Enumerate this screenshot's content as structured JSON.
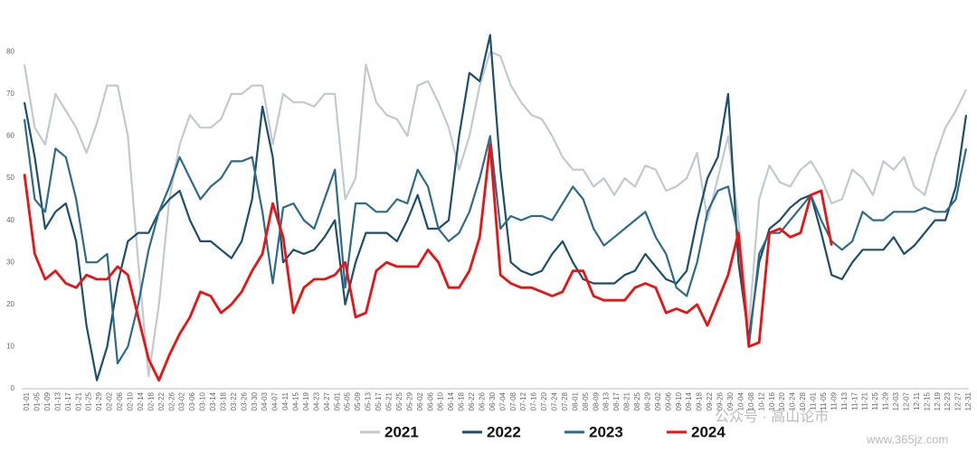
{
  "chart_data": {
    "type": "line",
    "categories": [
      "01-01",
      "01-05",
      "01-09",
      "01-13",
      "01-17",
      "01-21",
      "01-25",
      "01-29",
      "02-02",
      "02-06",
      "02-10",
      "02-14",
      "02-18",
      "02-22",
      "02-26",
      "03-02",
      "03-06",
      "03-10",
      "03-14",
      "03-18",
      "03-22",
      "03-26",
      "03-30",
      "04-03",
      "04-07",
      "04-11",
      "04-15",
      "04-19",
      "04-23",
      "04-27",
      "05-01",
      "05-05",
      "05-09",
      "05-13",
      "05-17",
      "05-21",
      "05-25",
      "05-29",
      "06-02",
      "06-06",
      "06-10",
      "06-14",
      "06-18",
      "06-22",
      "06-26",
      "06-30",
      "07-04",
      "07-08",
      "07-12",
      "07-16",
      "07-20",
      "07-24",
      "07-28",
      "08-01",
      "08-05",
      "08-09",
      "08-13",
      "08-17",
      "08-21",
      "08-25",
      "08-29",
      "09-02",
      "09-06",
      "09-10",
      "09-14",
      "09-18",
      "09-22",
      "09-26",
      "09-30",
      "10-04",
      "10-08",
      "10-12",
      "10-16",
      "10-20",
      "10-24",
      "10-28",
      "11-01",
      "11-05",
      "11-09",
      "11-13",
      "11-17",
      "11-21",
      "11-25",
      "11-29",
      "12-03",
      "12-07",
      "12-11",
      "12-15",
      "12-19",
      "12-23",
      "12-27",
      "12-31"
    ],
    "series": [
      {
        "name": "2021",
        "color": "#c3c9cf",
        "values": [
          77,
          62,
          58,
          70,
          66,
          62,
          56,
          63,
          72,
          72,
          60,
          30,
          3,
          20,
          45,
          58,
          65,
          62,
          62,
          64,
          70,
          70,
          72,
          72,
          58,
          70,
          68,
          68,
          67,
          70,
          70,
          45,
          50,
          77,
          68,
          65,
          64,
          60,
          72,
          73,
          68,
          62,
          52,
          60,
          72,
          80,
          79,
          72,
          68,
          65,
          64,
          60,
          55,
          52,
          52,
          48,
          50,
          46,
          50,
          48,
          53,
          52,
          47,
          48,
          50,
          56,
          40,
          50,
          60,
          40,
          15,
          45,
          53,
          49,
          48,
          52,
          54,
          50,
          44,
          45,
          52,
          50,
          46,
          54,
          52,
          55,
          48,
          46,
          55,
          62,
          66,
          71
        ]
      },
      {
        "name": "2022",
        "color": "#1b4f6b",
        "values": [
          68,
          55,
          38,
          42,
          44,
          35,
          15,
          2,
          10,
          25,
          35,
          37,
          37,
          42,
          45,
          47,
          40,
          35,
          35,
          33,
          31,
          35,
          45,
          67,
          55,
          30,
          33,
          32,
          33,
          36,
          40,
          20,
          30,
          37,
          37,
          37,
          35,
          40,
          46,
          38,
          38,
          40,
          60,
          75,
          73,
          84,
          52,
          30,
          28,
          27,
          28,
          32,
          35,
          30,
          26,
          25,
          25,
          25,
          27,
          28,
          32,
          29,
          26,
          25,
          28,
          40,
          50,
          55,
          70,
          30,
          12,
          30,
          38,
          40,
          43,
          45,
          46,
          37,
          27,
          26,
          30,
          33,
          33,
          33,
          36,
          32,
          34,
          37,
          40,
          40,
          48,
          65
        ]
      },
      {
        "name": "2023",
        "color": "#2c6c8a",
        "values": [
          64,
          45,
          42,
          57,
          55,
          45,
          30,
          30,
          32,
          6,
          10,
          20,
          33,
          42,
          48,
          55,
          50,
          45,
          48,
          50,
          54,
          54,
          55,
          42,
          25,
          43,
          44,
          40,
          38,
          45,
          52,
          24,
          44,
          44,
          42,
          42,
          45,
          44,
          52,
          48,
          38,
          35,
          37,
          42,
          50,
          60,
          38,
          41,
          40,
          41,
          41,
          40,
          44,
          48,
          45,
          38,
          34,
          36,
          38,
          40,
          42,
          36,
          32,
          24,
          22,
          30,
          42,
          47,
          48,
          36,
          10,
          32,
          37,
          37,
          40,
          43,
          46,
          40,
          35,
          33,
          35,
          42,
          40,
          40,
          42,
          42,
          42,
          43,
          42,
          42,
          45,
          57
        ]
      },
      {
        "name": "2024",
        "color": "#ee1111",
        "values": [
          51,
          32,
          26,
          28,
          25,
          24,
          27,
          26,
          26,
          29,
          27,
          17,
          7,
          2,
          8,
          13,
          17,
          23,
          22,
          18,
          20,
          23,
          28,
          32,
          44,
          36,
          18,
          24,
          26,
          26,
          27,
          30,
          17,
          18,
          28,
          30,
          29,
          29,
          29,
          33,
          30,
          24,
          24,
          28,
          36,
          58,
          27,
          25,
          24,
          24,
          23,
          22,
          23,
          28,
          28,
          22,
          21,
          21,
          21,
          24,
          25,
          24,
          18,
          19,
          18,
          20,
          15,
          21,
          27,
          37,
          10,
          11,
          37,
          38,
          36,
          37,
          46,
          47,
          34,
          null,
          null,
          null,
          null,
          null,
          null,
          null,
          null,
          null,
          null,
          null,
          null,
          null
        ]
      }
    ],
    "ylim": [
      0,
      85
    ],
    "yticks": [
      0,
      10,
      20,
      30,
      40,
      50,
      60,
      70,
      80
    ],
    "grid": false,
    "watermark": [
      "公众号 · 高山论市",
      "www.365jz.com"
    ]
  }
}
